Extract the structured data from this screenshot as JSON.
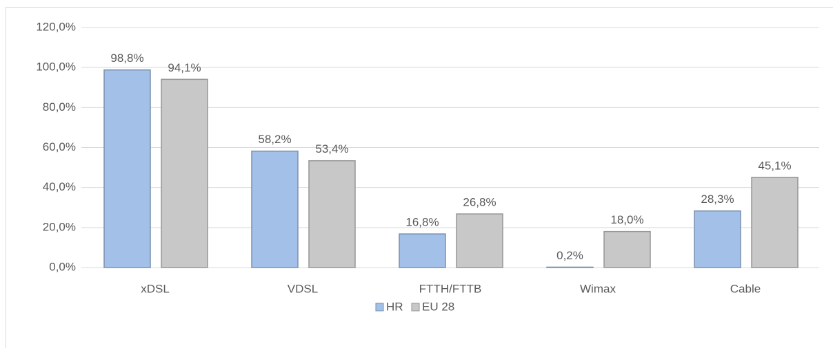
{
  "chart_data": {
    "type": "bar",
    "categories": [
      "xDSL",
      "VDSL",
      "FTTH/FTTB",
      "Wimax",
      "Cable"
    ],
    "series": [
      {
        "name": "HR",
        "color": "#a3c0e8",
        "values": [
          98.8,
          58.2,
          16.8,
          0.2,
          28.3
        ],
        "value_labels": [
          "98,8%",
          "58,2%",
          "16,8%",
          "0,2%",
          "28,3%"
        ]
      },
      {
        "name": "EU 28",
        "color": "#c8c8c8",
        "values": [
          94.1,
          53.4,
          26.8,
          18.0,
          45.1
        ],
        "value_labels": [
          "94,1%",
          "53,4%",
          "26,8%",
          "18,0%",
          "45,1%"
        ]
      }
    ],
    "ylim": [
      0,
      120
    ],
    "yticks": [
      {
        "value": 0,
        "label": "0,0%"
      },
      {
        "value": 20,
        "label": "20,0%"
      },
      {
        "value": 40,
        "label": "40,0%"
      },
      {
        "value": 60,
        "label": "60,0%"
      },
      {
        "value": 80,
        "label": "80,0%"
      },
      {
        "value": 100,
        "label": "100,0%"
      },
      {
        "value": 120,
        "label": "120,0%"
      }
    ],
    "grid": true,
    "legend": "bottom"
  }
}
